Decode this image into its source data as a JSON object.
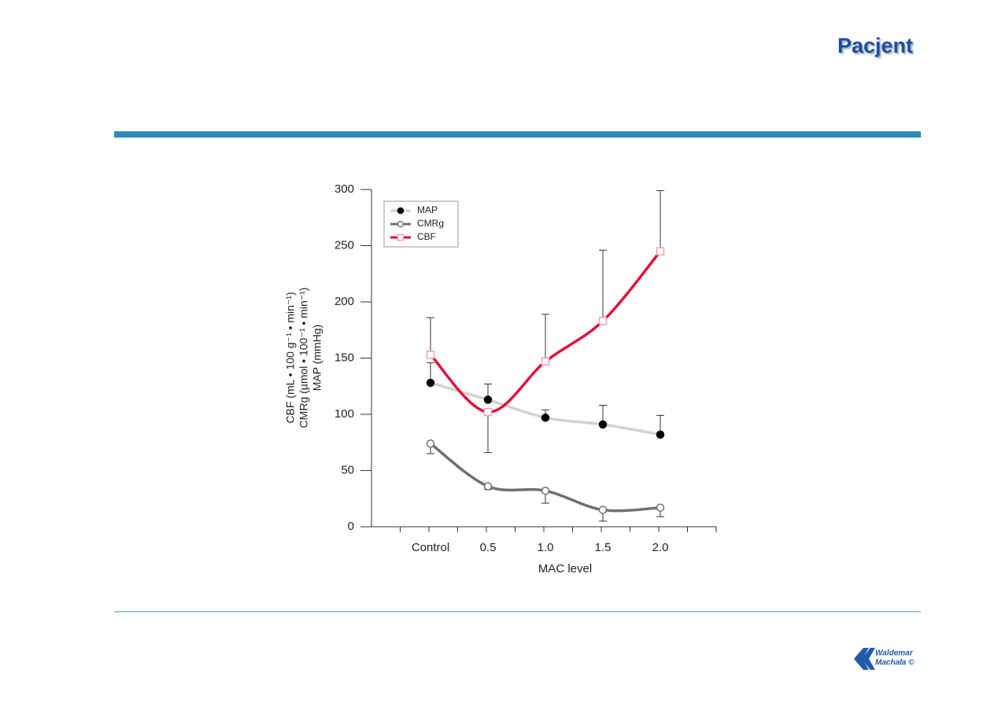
{
  "header": {
    "title": "Pacjent"
  },
  "logo": {
    "line1": "Waldemar",
    "line2": "Machała ©"
  },
  "chart_data": {
    "type": "line",
    "ylabel": [
      "CBF (mL • 100 g⁻¹ • min⁻¹)",
      "CMRg (µmol • 100⁻¹ • min⁻¹)",
      "MAP (mmHg)"
    ],
    "xlabel": "MAC level",
    "categories": [
      "Control",
      "0.5",
      "1.0",
      "1.5",
      "2.0"
    ],
    "ylim": [
      0,
      300
    ],
    "yticks": [
      0,
      50,
      100,
      150,
      200,
      250,
      300
    ],
    "legend": "top-left",
    "series": [
      {
        "name": "MAP",
        "color": "#d2d2d2",
        "marker": "filled-circle",
        "marker_color": "#000000",
        "values": [
          128,
          113,
          97,
          91,
          82
        ],
        "errors": [
          18,
          14,
          7,
          17,
          17
        ],
        "error_side": [
          "up",
          "up",
          "up",
          "up",
          "up"
        ]
      },
      {
        "name": "CMRg",
        "color": "#707070",
        "marker": "open-circle",
        "marker_color": "#707070",
        "values": [
          74,
          36,
          32,
          15,
          17
        ],
        "errors": [
          9,
          3,
          11,
          10,
          8
        ],
        "error_side": [
          "down",
          "down",
          "down",
          "down",
          "down"
        ]
      },
      {
        "name": "CBF",
        "color": "#e0103a",
        "marker": "open-square",
        "marker_color": "#f0a0b0",
        "values": [
          153,
          102,
          147,
          183,
          245
        ],
        "errors": [
          33,
          36,
          42,
          63,
          54
        ],
        "error_side": [
          "up",
          "down",
          "up",
          "up",
          "up"
        ]
      }
    ]
  }
}
